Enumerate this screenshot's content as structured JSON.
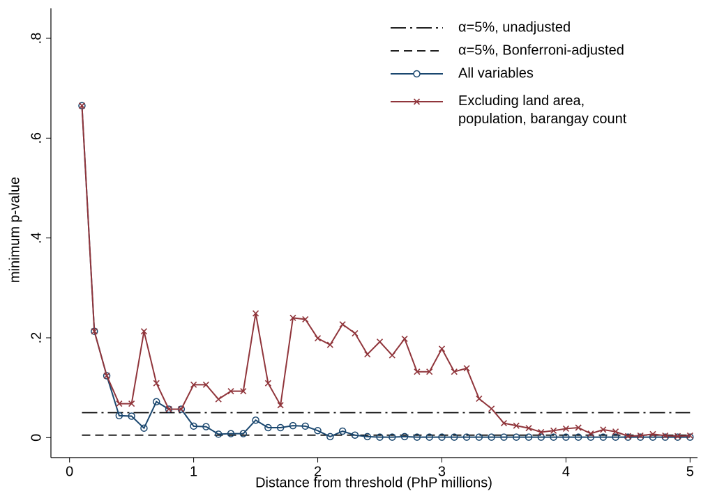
{
  "chart_data": {
    "type": "line",
    "xlabel": "Distance from threshold (PhP millions)",
    "ylabel": "minimum p-value",
    "x": [
      0.1,
      0.2,
      0.3,
      0.4,
      0.5,
      0.6,
      0.7,
      0.8,
      0.9,
      1.0,
      1.1,
      1.2,
      1.3,
      1.4,
      1.5,
      1.6,
      1.7,
      1.8,
      1.9,
      2.0,
      2.1,
      2.2,
      2.3,
      2.4,
      2.5,
      2.6,
      2.7,
      2.8,
      2.9,
      3.0,
      3.1,
      3.2,
      3.3,
      3.4,
      3.5,
      3.6,
      3.7,
      3.8,
      3.9,
      4.0,
      4.1,
      4.2,
      4.3,
      4.4,
      4.5,
      4.6,
      4.7,
      4.8,
      4.9,
      5.0
    ],
    "reference_lines": [
      {
        "name": "α=5%, unadjusted",
        "value": 0.05,
        "style": "dash-dot",
        "color": "#000000"
      },
      {
        "name": "α=5%, Bonferroni-adjusted",
        "value": 0.005,
        "style": "dash",
        "color": "#000000"
      }
    ],
    "series": [
      {
        "name": "All variables",
        "color": "#1a476f",
        "marker": "circle",
        "values": [
          0.665,
          0.213,
          0.124,
          0.044,
          0.043,
          0.019,
          0.072,
          0.057,
          0.057,
          0.023,
          0.022,
          0.007,
          0.008,
          0.008,
          0.035,
          0.02,
          0.02,
          0.024,
          0.023,
          0.014,
          0.002,
          0.013,
          0.005,
          0.002,
          0.001,
          0.001,
          0.002,
          0.001,
          0.001,
          0.001,
          0.001,
          0.001,
          0.001,
          0.001,
          0.001,
          0.001,
          0.001,
          0.001,
          0.001,
          0.001,
          0.001,
          0.001,
          0.001,
          0.001,
          0.001,
          0.001,
          0.001,
          0.001,
          0.001,
          0.001
        ]
      },
      {
        "name": "Excluding land area,\npopulation, barangay count",
        "color": "#90353b",
        "marker": "x",
        "values": [
          0.665,
          0.213,
          0.124,
          0.068,
          0.068,
          0.213,
          0.109,
          0.057,
          0.057,
          0.106,
          0.106,
          0.077,
          0.093,
          0.093,
          0.249,
          0.109,
          0.065,
          0.24,
          0.237,
          0.199,
          0.186,
          0.227,
          0.209,
          0.167,
          0.192,
          0.165,
          0.198,
          0.132,
          0.132,
          0.178,
          0.132,
          0.139,
          0.078,
          0.058,
          0.029,
          0.024,
          0.019,
          0.011,
          0.014,
          0.018,
          0.02,
          0.008,
          0.016,
          0.012,
          0.003,
          0.004,
          0.007,
          0.004,
          0.003,
          0.004
        ]
      }
    ],
    "xlim": [
      -0.15,
      5.06
    ],
    "ylim": [
      -0.04,
      0.86
    ],
    "xticks": [
      0,
      1,
      2,
      3,
      4,
      5
    ],
    "yticks": [
      0,
      {
        "value": 0.2,
        "label": ".2"
      },
      {
        "value": 0.4,
        "label": ".4"
      },
      {
        "value": 0.6,
        "label": ".6"
      },
      {
        "value": 0.8,
        "label": ".8"
      }
    ],
    "grid": false,
    "legend": "top-right"
  }
}
